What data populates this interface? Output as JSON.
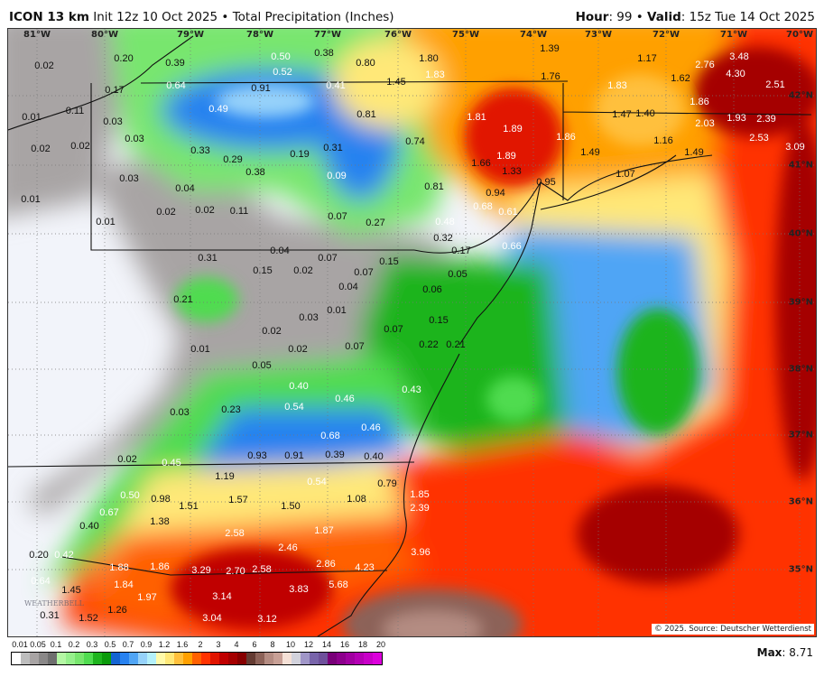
{
  "header": {
    "model": "ICON 13 km",
    "init": "Init 12z 10 Oct 2025",
    "separator": "•",
    "product": "Total Precipitation (Inches)",
    "hour_label": "Hour",
    "hour": "99",
    "valid_label": "Valid",
    "valid": "15z Tue 14 Oct 2025"
  },
  "map": {
    "longitude_labels": [
      "81°W",
      "80°W",
      "79°W",
      "78°W",
      "77°W",
      "76°W",
      "75°W",
      "74°W",
      "73°W",
      "72°W",
      "71°W",
      "70°W"
    ],
    "latitude_labels": [
      "42°N",
      "41°N",
      "40°N",
      "39°N",
      "38°N",
      "37°N",
      "36°N",
      "35°N"
    ],
    "values": [
      "0.02",
      "0.20",
      "0.39",
      "0.64",
      "0.50",
      "0.52",
      "0.38",
      "0.80",
      "0.17",
      "0.91",
      "0.41",
      "1.45",
      "0.01",
      "0.11",
      "0.49",
      "0.81",
      "0.03",
      "0.03",
      "0.02",
      "0.02",
      "0.33",
      "0.29",
      "0.38",
      "0.19",
      "0.31",
      "0.74",
      "0.09",
      "0.03",
      "0.04",
      "0.01",
      "0.02",
      "0.02",
      "0.11",
      "0.07",
      "0.27",
      "0.01",
      "1.80",
      "1.83",
      "1.39",
      "1.17",
      "1.76",
      "1.62",
      "2.76",
      "3.48",
      "4.30",
      "2.51",
      "1.83",
      "1.81",
      "1.89",
      "1.47",
      "1.40",
      "1.86",
      "2.03",
      "1.93",
      "2.39",
      "2.53",
      "3.09",
      "1.86",
      "1.49",
      "1.16",
      "1.49",
      "1.66",
      "1.89",
      "1.33",
      "0.95",
      "1.07",
      "0.81",
      "0.94",
      "0.68",
      "0.61",
      "0.48",
      "0.32",
      "0.17",
      "0.66",
      "0.05",
      "0.06",
      "0.15",
      "0.22",
      "0.21",
      "0.43",
      "0.07",
      "0.07",
      "0.15",
      "0.04",
      "0.01",
      "0.03",
      "0.07",
      "0.04",
      "0.07",
      "0.31",
      "0.15",
      "0.02",
      "0.21",
      "0.02",
      "0.01",
      "0.02",
      "0.05",
      "0.40",
      "0.46",
      "0.54",
      "0.03",
      "0.23",
      "0.68",
      "0.46",
      "0.93",
      "0.91",
      "0.39",
      "0.40",
      "0.02",
      "0.45",
      "1.19",
      "0.54",
      "0.79",
      "1.08",
      "0.50",
      "0.98",
      "1.51",
      "1.57",
      "1.50",
      "1.85",
      "2.39",
      "0.67",
      "1.38",
      "0.40",
      "2.58",
      "1.87",
      "2.46",
      "0.20",
      "0.42",
      "3.96",
      "1.88",
      "1.86",
      "3.29",
      "2.70",
      "2.58",
      "2.86",
      "4.23",
      "0.64",
      "1.45",
      "1.84",
      "1.97",
      "3.14",
      "3.83",
      "5.68",
      "1.26",
      "0.31",
      "1.52",
      "3.04",
      "3.12"
    ],
    "source": "© 2025. Source: Deutscher Wetterdienst",
    "logo": "WeatherBELL"
  },
  "colorbar": {
    "ticks": [
      "0.01",
      "0.05",
      "0.1",
      "0.2",
      "0.3",
      "0.5",
      "0.7",
      "0.9",
      "1.2",
      "1.6",
      "2",
      "3",
      "4",
      "6",
      "8",
      "10",
      "12",
      "14",
      "16",
      "18",
      "20"
    ],
    "colors": [
      "#ffffff",
      "#bdbdbd",
      "#a8a4a4",
      "#8a8888",
      "#6e6e6e",
      "#b4f7a4",
      "#96f08c",
      "#78e66e",
      "#50dc50",
      "#1eb41e",
      "#0a9a0a",
      "#1464d2",
      "#2882f0",
      "#50a5f5",
      "#96d2fa",
      "#b4f0fa",
      "#fffaaa",
      "#ffe878",
      "#ffc03c",
      "#ffa000",
      "#ff6000",
      "#ff3200",
      "#e11400",
      "#c00000",
      "#a50000",
      "#870000",
      "#643b32",
      "#8c6258",
      "#b48c82",
      "#c8a096",
      "#f5e0d6",
      "#d2d2dc",
      "#a096c8",
      "#7864aa",
      "#6e509b",
      "#780078",
      "#8c008c",
      "#a000a0",
      "#b400b4",
      "#c800c8",
      "#dc00dc"
    ],
    "max_label": "Max",
    "max_value": "8.71"
  }
}
